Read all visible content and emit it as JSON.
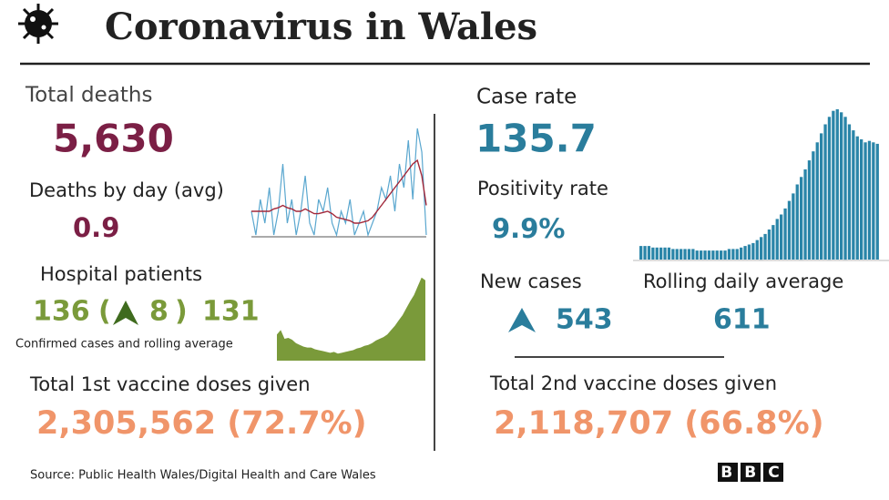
{
  "header": {
    "title": "Coronavirus in Wales"
  },
  "total_deaths": {
    "label": "Total deaths",
    "value": "5,630"
  },
  "deaths_by_day": {
    "label": "Deaths by day (avg)",
    "value": "0.9",
    "chart": {
      "ylim": [
        0,
        10
      ],
      "daily": [
        2,
        0,
        3,
        1,
        4,
        0,
        2,
        6,
        1,
        3,
        0,
        2,
        5,
        1,
        0,
        3,
        2,
        4,
        1,
        0,
        2,
        1,
        3,
        0,
        1,
        2,
        0,
        1,
        2,
        4,
        3,
        5,
        2,
        6,
        4,
        8,
        3,
        9,
        7,
        0
      ],
      "average": [
        2,
        2,
        2,
        2,
        2,
        2.2,
        2.3,
        2.5,
        2.3,
        2.2,
        2,
        2,
        2.2,
        2,
        1.8,
        1.8,
        1.9,
        2,
        1.8,
        1.5,
        1.4,
        1.3,
        1.2,
        1,
        1,
        1.1,
        1.2,
        1.5,
        2,
        2.5,
        3,
        3.5,
        4,
        4.5,
        5,
        5.5,
        6,
        6.3,
        5,
        2.5
      ]
    }
  },
  "hospital": {
    "label": "Hospital patients",
    "patients": "136",
    "open_paren": "(",
    "change": "8",
    "close_paren": ")",
    "average": "131",
    "caption": "Confirmed cases and rolling average",
    "chart": {
      "ylim": [
        0,
        10
      ],
      "values": [
        3,
        3.5,
        2.5,
        2.6,
        2.4,
        2,
        1.8,
        1.6,
        1.5,
        1.5,
        1.3,
        1.2,
        1.1,
        1,
        0.9,
        1,
        0.8,
        0.9,
        1,
        1.1,
        1.2,
        1.4,
        1.5,
        1.7,
        1.8,
        2,
        2.3,
        2.5,
        2.7,
        3,
        3.5,
        4,
        4.6,
        5.2,
        6,
        6.8,
        7.5,
        8.5,
        9.5,
        9.2
      ]
    }
  },
  "first_dose": {
    "label": "Total 1st vaccine doses given",
    "value": "2,305,562 (72.7%)"
  },
  "case_rate": {
    "label": "Case rate",
    "value": "135.7",
    "chart": {
      "ylim": [
        0,
        10
      ],
      "values": [
        0.9,
        0.9,
        0.9,
        0.8,
        0.8,
        0.8,
        0.8,
        0.8,
        0.7,
        0.7,
        0.7,
        0.7,
        0.7,
        0.7,
        0.6,
        0.6,
        0.6,
        0.6,
        0.6,
        0.6,
        0.6,
        0.6,
        0.7,
        0.7,
        0.7,
        0.8,
        0.9,
        1,
        1.1,
        1.3,
        1.5,
        1.7,
        2,
        2.3,
        2.7,
        3,
        3.4,
        3.9,
        4.4,
        5,
        5.5,
        6,
        6.6,
        7.2,
        7.8,
        8.4,
        9,
        9.5,
        9.9,
        10,
        9.8,
        9.5,
        9,
        8.6,
        8.2,
        8,
        7.8,
        7.9,
        7.8,
        7.7
      ]
    }
  },
  "positivity": {
    "label": "Positivity rate",
    "value": "9.9%"
  },
  "new_cases": {
    "label": "New cases",
    "value": "543"
  },
  "rolling_average": {
    "label": "Rolling daily average",
    "value": "611"
  },
  "second_dose": {
    "label": "Total 2nd vaccine doses given",
    "value": "2,118,707 (66.8%)"
  },
  "footer": {
    "source": "Source: Public Health Wales/Digital Health and Care Wales",
    "logo": "BBC"
  }
}
